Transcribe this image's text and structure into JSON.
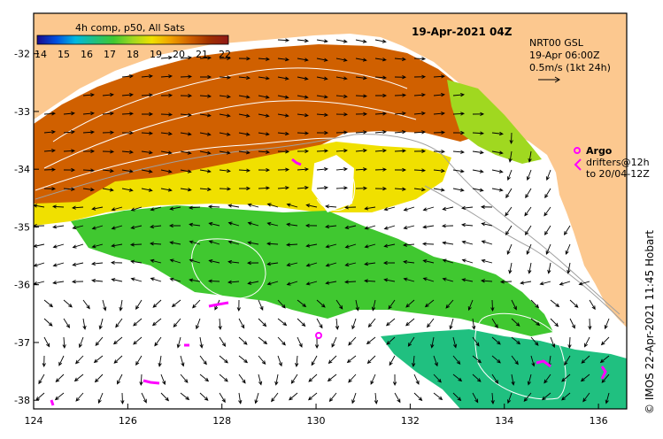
{
  "map": {
    "product_label": "4h comp, p50, All Sats",
    "timestamp": "19-Apr-2021 04Z",
    "colorbar": {
      "tick_labels": [
        "14",
        "15",
        "16",
        "17",
        "18",
        "19",
        "20",
        "21",
        "22"
      ],
      "values": [
        14,
        15,
        16,
        17,
        18,
        19,
        20,
        21,
        22
      ],
      "colors": [
        "#1a0a8c",
        "#0050e0",
        "#00b8e0",
        "#20c080",
        "#40c830",
        "#a0d820",
        "#f0e000",
        "#f0a000",
        "#d06000",
        "#a03000",
        "#901818"
      ]
    },
    "current_legend": {
      "line1": "NRT00 GSL",
      "line2": "19-Apr 06:00Z",
      "line3": "0.5m/s (1kt 24h)"
    },
    "argo_legend": {
      "title": "Argo",
      "line1": "drifters@12h",
      "line2": "to 20/04-12Z"
    },
    "credit": "© IMOS 22-Apr-2021 11:45 Hobart",
    "x_axis": {
      "tick_labels": [
        "124",
        "126",
        "128",
        "130",
        "132",
        "134",
        "136"
      ],
      "values": [
        124,
        126,
        128,
        130,
        132,
        134,
        136
      ],
      "range": [
        124,
        136.6
      ]
    },
    "y_axis": {
      "tick_labels": [
        "-32",
        "-33",
        "-34",
        "-35",
        "-36",
        "-37",
        "-38"
      ],
      "values": [
        -32,
        -33,
        -34,
        -35,
        -36,
        -37,
        -38
      ],
      "range": [
        -38.15,
        -31.3
      ]
    },
    "colors": {
      "land": "#fcc88f",
      "frame": "#000000",
      "arrow": "#000000",
      "drifter": "#ff00ff"
    }
  }
}
